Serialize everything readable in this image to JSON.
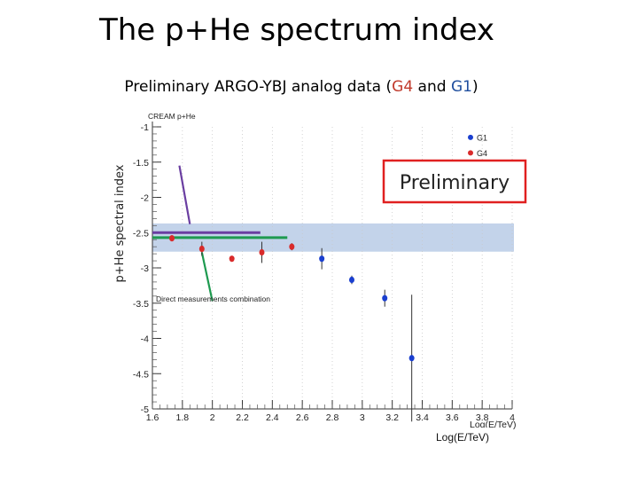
{
  "slide": {
    "title": "The p+He spectrum index",
    "subtitle_prefix": "Preliminary ARGO-YBJ analog data (",
    "subtitle_g4": "G4",
    "subtitle_and": " and ",
    "subtitle_g1": "G1",
    "subtitle_suffix": ")"
  },
  "chart_data": {
    "type": "scatter",
    "title": "",
    "ylabel": "p+He spectral index",
    "xlabel": "Log(E/TeV)",
    "xlim": [
      1.6,
      4.0
    ],
    "ylim": [
      -5,
      -1
    ],
    "xticks": [
      "1.6",
      "1.8",
      "2",
      "2.2",
      "2.4",
      "2.6",
      "2.8",
      "3",
      "3.2",
      "3.4",
      "3.6",
      "3.8",
      "4"
    ],
    "yticks": [
      "-1",
      "-1.5",
      "-2",
      "-2.5",
      "-3",
      "-3.5",
      "-4",
      "-4.5",
      "-5"
    ],
    "series": [
      {
        "name": "G1",
        "color": "#1a3fcf",
        "points": [
          {
            "x": 2.73,
            "y": -2.87,
            "err": 0.15
          },
          {
            "x": 2.93,
            "y": -3.17,
            "err": 0.06
          },
          {
            "x": 3.15,
            "y": -3.43,
            "err": 0.12
          },
          {
            "x": 3.33,
            "y": -4.28,
            "err": 0.9
          }
        ]
      },
      {
        "name": "G4",
        "color": "#d92b2b",
        "points": [
          {
            "x": 1.73,
            "y": -2.58,
            "err": 0.03
          },
          {
            "x": 1.93,
            "y": -2.73,
            "err": 0.1
          },
          {
            "x": 2.13,
            "y": -2.87,
            "err": 0.03
          },
          {
            "x": 2.33,
            "y": -2.78,
            "err": 0.15
          },
          {
            "x": 2.53,
            "y": -2.7,
            "err": 0.05
          }
        ]
      }
    ],
    "band": {
      "y_low": -2.77,
      "y_high": -2.37,
      "color": "#b8cbe6"
    },
    "annotations": {
      "top_label": "CREAM p+He",
      "bottom_label": "Direct measurements combination",
      "preliminary_box": "Preliminary",
      "partial_axis_label": "Log(E/TeV)"
    },
    "lines": [
      {
        "name": "purple-horizontal",
        "color": "#6a3ea1",
        "x1": 1.6,
        "x2": 2.32,
        "y": -2.5
      },
      {
        "name": "green-horizontal",
        "color": "#1e9a50",
        "x1": 1.6,
        "x2": 2.5,
        "y": -2.57
      },
      {
        "name": "purple-pointer",
        "color": "#6a3ea1",
        "x1": 1.78,
        "y1": -1.55,
        "x2": 1.85,
        "y2": -2.38
      },
      {
        "name": "green-pointer",
        "color": "#1e9a50",
        "x1": 1.93,
        "y1": -2.78,
        "x2": 2.0,
        "y2": -3.47
      }
    ]
  }
}
